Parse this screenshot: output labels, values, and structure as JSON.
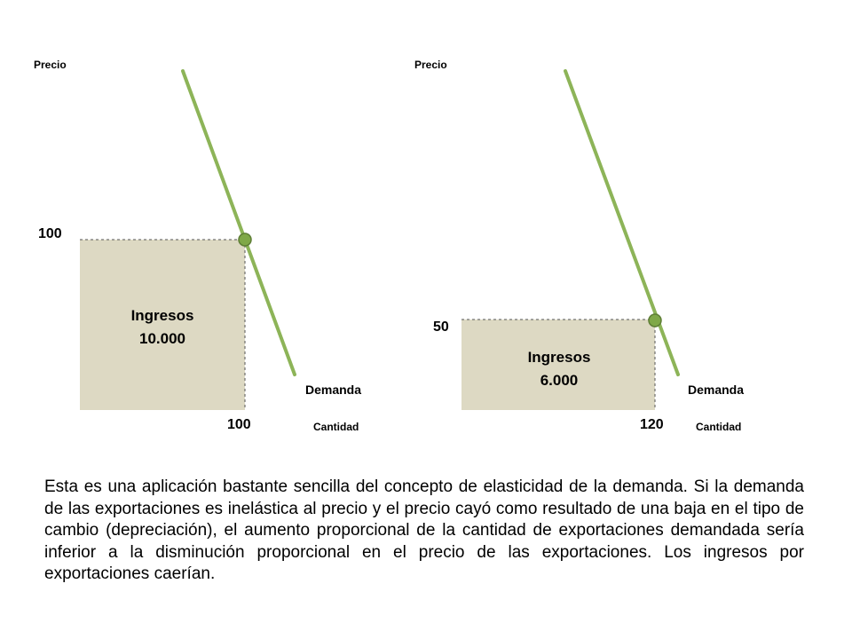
{
  "chart_data": [
    {
      "type": "line",
      "y_axis_label": "Precio",
      "x_axis_label": "Cantidad",
      "curve_label": "Demanda",
      "point": {
        "quantity": 100,
        "price": 100
      },
      "price_tick": "100",
      "quantity_tick": "100",
      "revenue_title": "Ingresos",
      "revenue_value": "10.000",
      "colors": {
        "curve": "#8db458",
        "area": "#ddd9c3",
        "point": "#7fa847"
      }
    },
    {
      "type": "line",
      "y_axis_label": "Precio",
      "x_axis_label": "Cantidad",
      "curve_label": "Demanda",
      "point": {
        "quantity": 120,
        "price": 50
      },
      "price_tick": "50",
      "quantity_tick": "120",
      "revenue_title": "Ingresos",
      "revenue_value": "6.000",
      "colors": {
        "curve": "#8db458",
        "area": "#ddd9c3",
        "point": "#7fa847"
      }
    }
  ],
  "paragraph": "Esta es una aplicación bastante sencilla del concepto de elasticidad de la demanda. Si la demanda de las exportaciones es inelástica al precio y el precio cayó como resultado de una baja en el tipo de cambio (depreciación), el aumento proporcional de la cantidad de exportaciones demandada sería inferior a la disminución proporcional en el precio de las exportaciones. Los ingresos por exportaciones caerían."
}
